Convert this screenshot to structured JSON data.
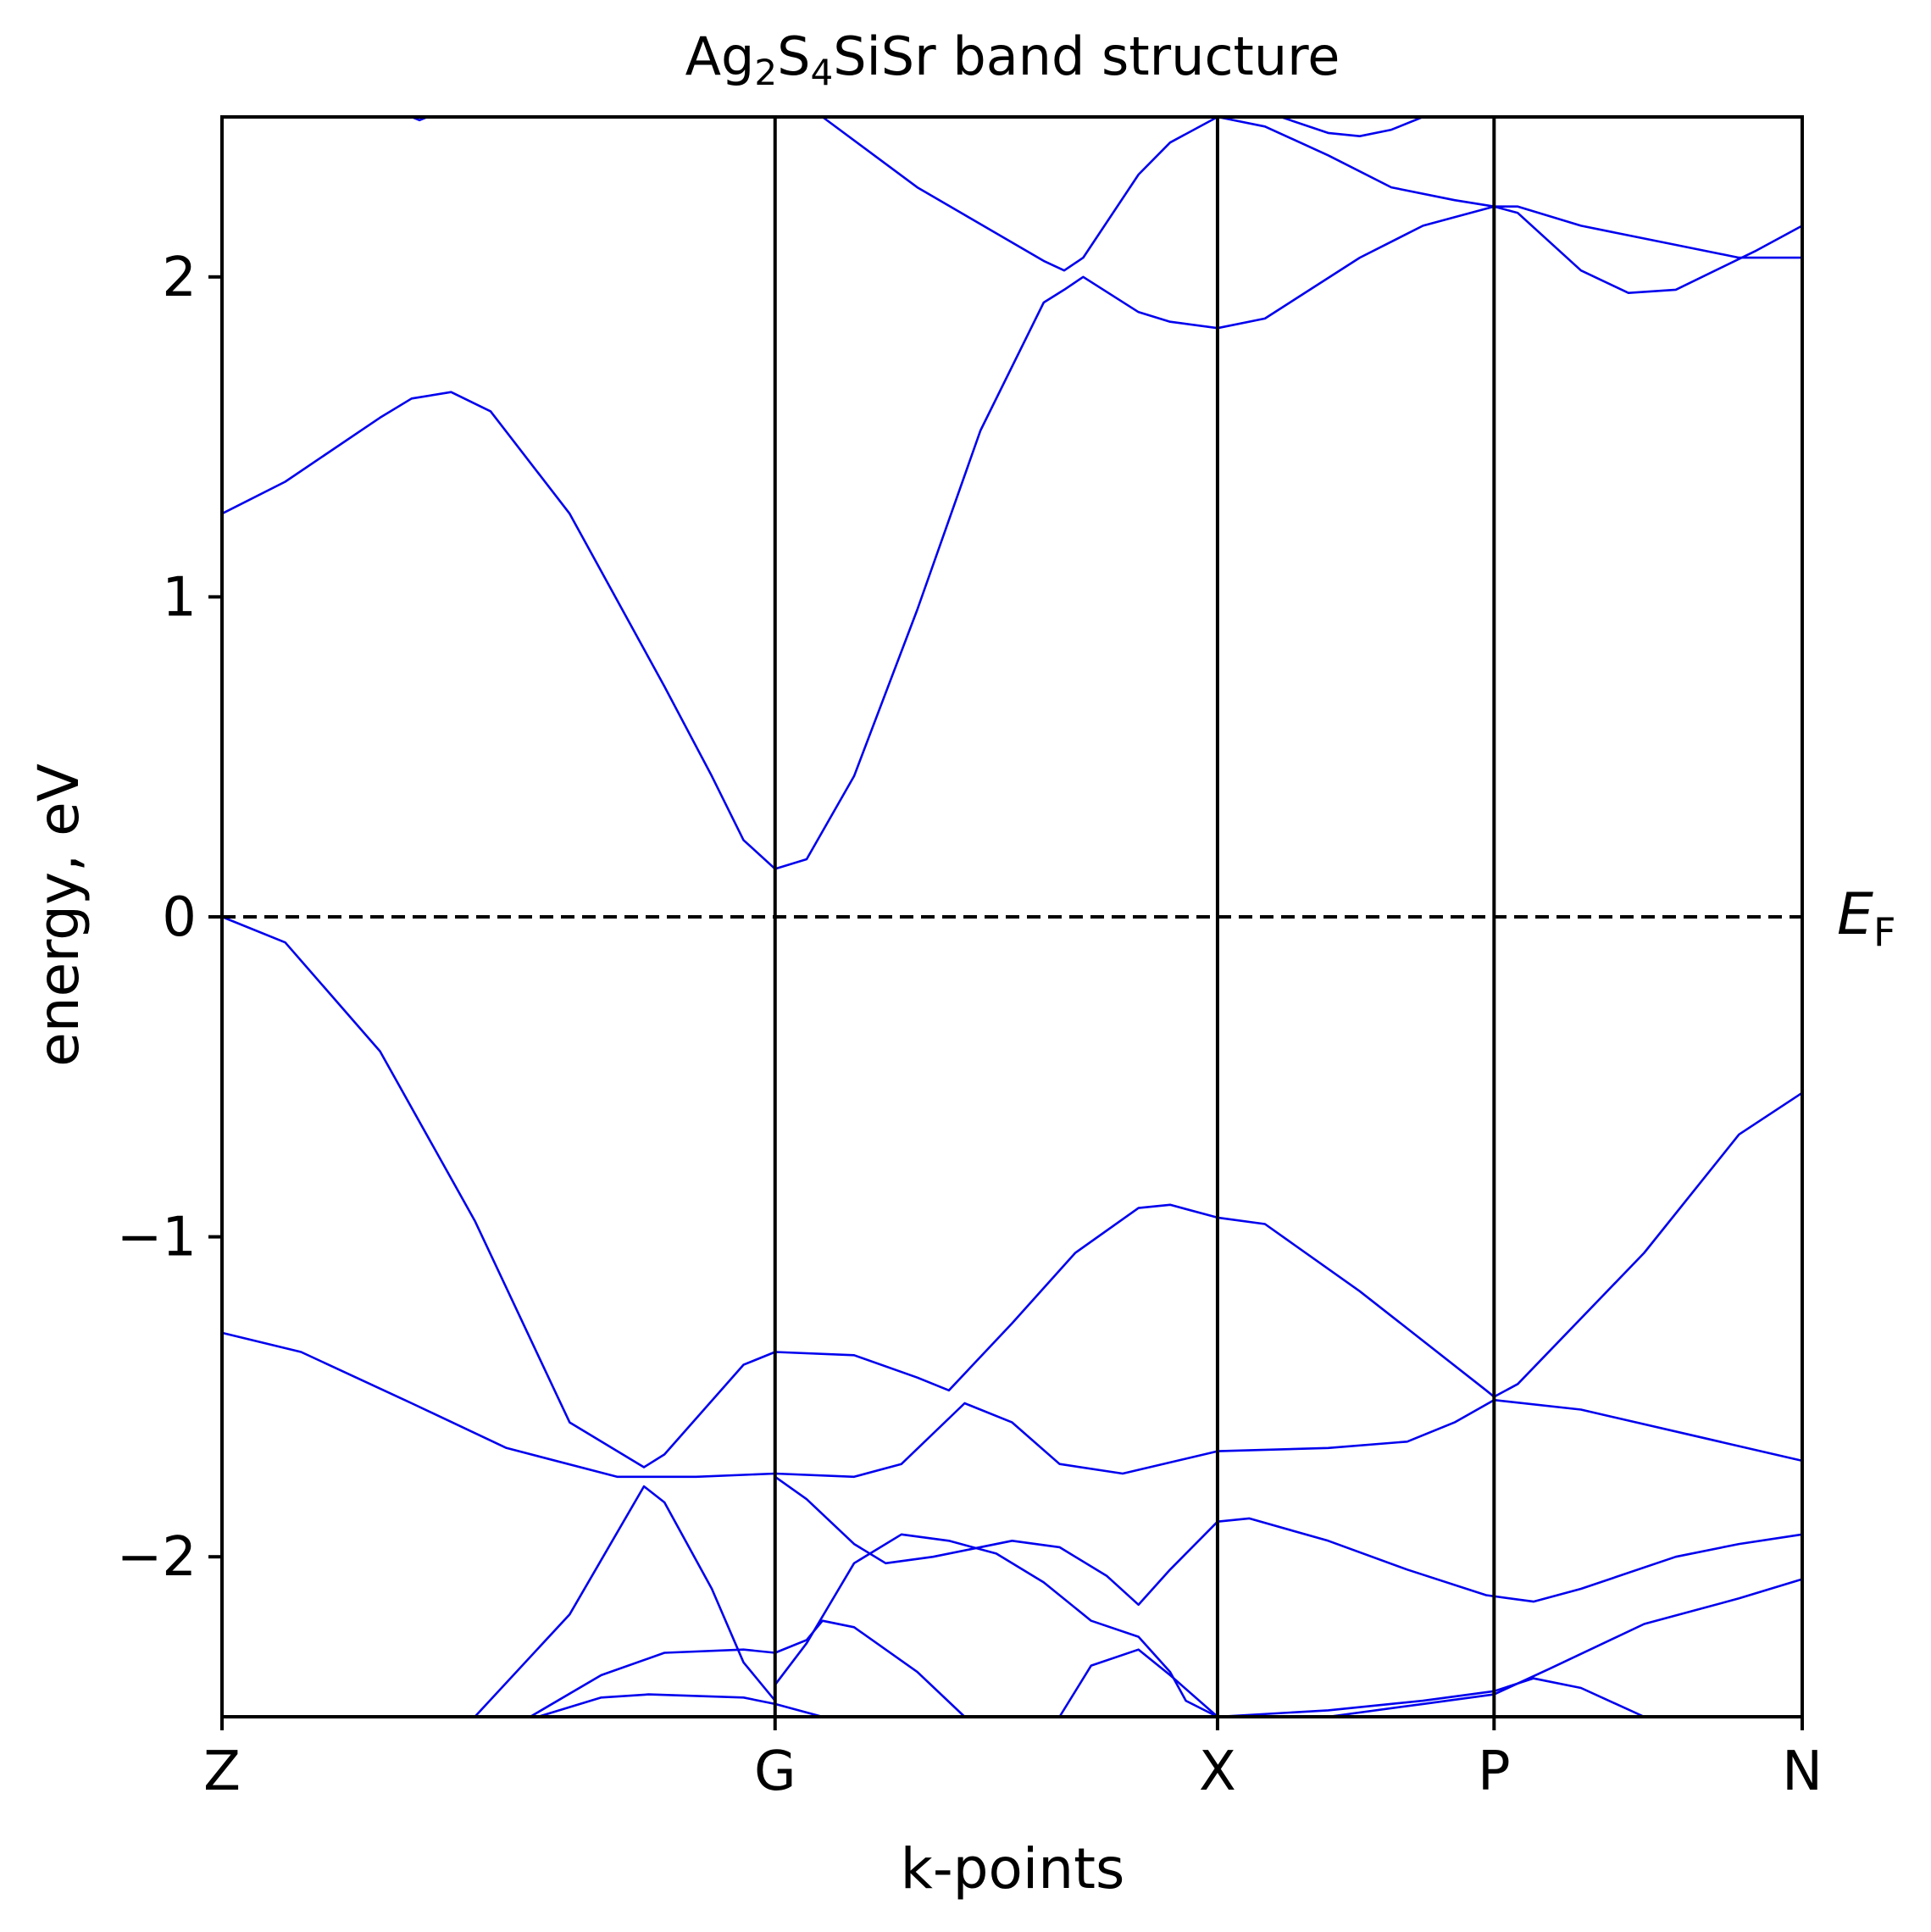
{
  "chart_data": {
    "type": "line",
    "title": {
      "prefix": "Ag",
      "sub1": "2",
      "mid": "S",
      "sub2": "4",
      "suffix": "SiSr band structure"
    },
    "xlabel": "k-points",
    "ylabel": "energy, eV",
    "fermi_label": {
      "main": "E",
      "sub": "F"
    },
    "fermi_level": 0,
    "ylim": [
      -2.5,
      2.5
    ],
    "xlim": [
      0,
      1
    ],
    "yticks": [
      -2,
      -1,
      0,
      1,
      2
    ],
    "ytick_labels": [
      "−2",
      "−1",
      "0",
      "1",
      "2"
    ],
    "high_symmetry_points": [
      {
        "label": "Z",
        "x": 0.0
      },
      {
        "label": "G",
        "x": 0.35
      },
      {
        "label": "X",
        "x": 0.63
      },
      {
        "label": "P",
        "x": 0.805
      },
      {
        "label": "N",
        "x": 1.0
      }
    ],
    "line_color": "#0000ee",
    "series": [
      {
        "values": [
          [
            0.0,
            0.0
          ],
          [
            0.04,
            -0.08
          ],
          [
            0.1,
            -0.42
          ],
          [
            0.16,
            -0.95
          ],
          [
            0.22,
            -1.58
          ],
          [
            0.267,
            -1.72
          ],
          [
            0.28,
            -1.68
          ],
          [
            0.33,
            -1.4
          ],
          [
            0.35,
            -1.36
          ],
          [
            0.4,
            -1.37
          ],
          [
            0.44,
            -1.44
          ],
          [
            0.46,
            -1.48
          ],
          [
            0.5,
            -1.27
          ],
          [
            0.54,
            -1.05
          ],
          [
            0.58,
            -0.91
          ],
          [
            0.6,
            -0.9
          ],
          [
            0.63,
            -0.94
          ],
          [
            0.66,
            -0.96
          ],
          [
            0.72,
            -1.17
          ],
          [
            0.8,
            -1.48
          ],
          [
            0.805,
            -1.5
          ],
          [
            0.82,
            -1.46
          ],
          [
            0.9,
            -1.05
          ],
          [
            0.96,
            -0.68
          ],
          [
            1.0,
            -0.55
          ]
        ]
      },
      {
        "values": [
          [
            0.0,
            -1.3
          ],
          [
            0.05,
            -1.36
          ],
          [
            0.12,
            -1.52
          ],
          [
            0.18,
            -1.66
          ],
          [
            0.25,
            -1.75
          ],
          [
            0.3,
            -1.75
          ],
          [
            0.35,
            -1.74
          ],
          [
            0.4,
            -1.75
          ],
          [
            0.43,
            -1.71
          ],
          [
            0.47,
            -1.52
          ],
          [
            0.5,
            -1.58
          ],
          [
            0.53,
            -1.71
          ],
          [
            0.57,
            -1.74
          ],
          [
            0.63,
            -1.67
          ],
          [
            0.7,
            -1.66
          ],
          [
            0.75,
            -1.64
          ],
          [
            0.78,
            -1.58
          ],
          [
            0.805,
            -1.51
          ],
          [
            0.86,
            -1.54
          ],
          [
            0.93,
            -1.62
          ],
          [
            1.0,
            -1.7
          ]
        ]
      },
      {
        "values": [
          [
            0.16,
            -2.5
          ],
          [
            0.22,
            -2.18
          ],
          [
            0.267,
            -1.78
          ],
          [
            0.28,
            -1.83
          ],
          [
            0.31,
            -2.1
          ],
          [
            0.33,
            -2.33
          ],
          [
            0.35,
            -2.45
          ]
        ]
      },
      {
        "values": [
          [
            0.35,
            -1.75
          ],
          [
            0.37,
            -1.82
          ],
          [
            0.4,
            -1.96
          ],
          [
            0.42,
            -2.02
          ],
          [
            0.45,
            -2.0
          ],
          [
            0.5,
            -1.95
          ],
          [
            0.53,
            -1.97
          ],
          [
            0.56,
            -2.06
          ],
          [
            0.58,
            -2.15
          ],
          [
            0.6,
            -2.04
          ],
          [
            0.63,
            -1.89
          ],
          [
            0.65,
            -1.88
          ],
          [
            0.7,
            -1.95
          ],
          [
            0.75,
            -2.04
          ],
          [
            0.8,
            -2.12
          ],
          [
            0.83,
            -2.14
          ],
          [
            0.86,
            -2.1
          ],
          [
            0.92,
            -2.0
          ],
          [
            0.96,
            -1.96
          ],
          [
            1.0,
            -1.93
          ]
        ]
      },
      {
        "values": [
          [
            0.35,
            -2.4
          ],
          [
            0.37,
            -2.27
          ],
          [
            0.4,
            -2.02
          ],
          [
            0.43,
            -1.93
          ],
          [
            0.46,
            -1.95
          ],
          [
            0.49,
            -1.99
          ],
          [
            0.52,
            -2.08
          ],
          [
            0.55,
            -2.2
          ],
          [
            0.58,
            -2.25
          ],
          [
            0.6,
            -2.36
          ],
          [
            0.61,
            -2.45
          ],
          [
            0.63,
            -2.5
          ]
        ]
      },
      {
        "values": [
          [
            0.195,
            -2.5
          ],
          [
            0.24,
            -2.37
          ],
          [
            0.28,
            -2.3
          ],
          [
            0.33,
            -2.29
          ],
          [
            0.35,
            -2.3
          ],
          [
            0.37,
            -2.26
          ],
          [
            0.38,
            -2.2
          ],
          [
            0.4,
            -2.22
          ],
          [
            0.44,
            -2.36
          ],
          [
            0.47,
            -2.5
          ]
        ]
      },
      {
        "values": [
          [
            0.2,
            -2.5
          ],
          [
            0.24,
            -2.44
          ],
          [
            0.27,
            -2.43
          ],
          [
            0.33,
            -2.44
          ],
          [
            0.35,
            -2.46
          ],
          [
            0.38,
            -2.5
          ]
        ]
      },
      {
        "values": [
          [
            0.53,
            -2.5
          ],
          [
            0.55,
            -2.34
          ],
          [
            0.58,
            -2.29
          ],
          [
            0.6,
            -2.37
          ],
          [
            0.63,
            -2.5
          ]
        ]
      },
      {
        "values": [
          [
            0.63,
            -2.5
          ],
          [
            0.7,
            -2.48
          ],
          [
            0.76,
            -2.45
          ],
          [
            0.805,
            -2.42
          ],
          [
            0.83,
            -2.38
          ],
          [
            0.86,
            -2.41
          ],
          [
            0.9,
            -2.5
          ]
        ]
      },
      {
        "values": [
          [
            0.7,
            -2.5
          ],
          [
            0.76,
            -2.46
          ],
          [
            0.805,
            -2.43
          ],
          [
            0.84,
            -2.35
          ],
          [
            0.9,
            -2.21
          ],
          [
            0.96,
            -2.13
          ],
          [
            1.0,
            -2.07
          ]
        ]
      },
      {
        "values": [
          [
            0.0,
            1.26
          ],
          [
            0.04,
            1.36
          ],
          [
            0.1,
            1.56
          ],
          [
            0.12,
            1.62
          ],
          [
            0.145,
            1.64
          ],
          [
            0.17,
            1.58
          ],
          [
            0.22,
            1.26
          ],
          [
            0.28,
            0.72
          ],
          [
            0.31,
            0.44
          ],
          [
            0.33,
            0.24
          ],
          [
            0.35,
            0.15
          ],
          [
            0.37,
            0.18
          ],
          [
            0.4,
            0.44
          ],
          [
            0.44,
            0.96
          ],
          [
            0.48,
            1.52
          ],
          [
            0.52,
            1.92
          ],
          [
            0.533,
            1.96
          ],
          [
            0.545,
            2.0
          ],
          [
            0.58,
            1.89
          ],
          [
            0.6,
            1.86
          ],
          [
            0.63,
            1.84
          ],
          [
            0.66,
            1.87
          ],
          [
            0.72,
            2.06
          ],
          [
            0.76,
            2.16
          ],
          [
            0.805,
            2.22
          ],
          [
            0.82,
            2.2
          ],
          [
            0.86,
            2.02
          ],
          [
            0.89,
            1.95
          ],
          [
            0.92,
            1.96
          ],
          [
            0.97,
            2.08
          ],
          [
            1.0,
            2.16
          ]
        ]
      },
      {
        "values": [
          [
            0.38,
            2.5
          ],
          [
            0.44,
            2.28
          ],
          [
            0.52,
            2.05
          ],
          [
            0.533,
            2.02
          ],
          [
            0.545,
            2.06
          ],
          [
            0.58,
            2.32
          ],
          [
            0.6,
            2.42
          ],
          [
            0.63,
            2.5
          ]
        ]
      },
      {
        "values": [
          [
            0.63,
            2.5
          ],
          [
            0.66,
            2.47
          ],
          [
            0.7,
            2.38
          ],
          [
            0.74,
            2.28
          ],
          [
            0.78,
            2.24
          ],
          [
            0.805,
            2.22
          ],
          [
            0.82,
            2.22
          ],
          [
            0.86,
            2.16
          ],
          [
            0.92,
            2.1
          ],
          [
            0.96,
            2.06
          ],
          [
            1.0,
            2.06
          ]
        ]
      },
      {
        "values": [
          [
            0.67,
            2.5
          ],
          [
            0.7,
            2.45
          ],
          [
            0.72,
            2.44
          ],
          [
            0.74,
            2.46
          ],
          [
            0.76,
            2.5
          ]
        ]
      },
      {
        "values": [
          [
            0.12,
            2.5
          ],
          [
            0.125,
            2.49
          ],
          [
            0.13,
            2.5
          ]
        ]
      }
    ]
  }
}
